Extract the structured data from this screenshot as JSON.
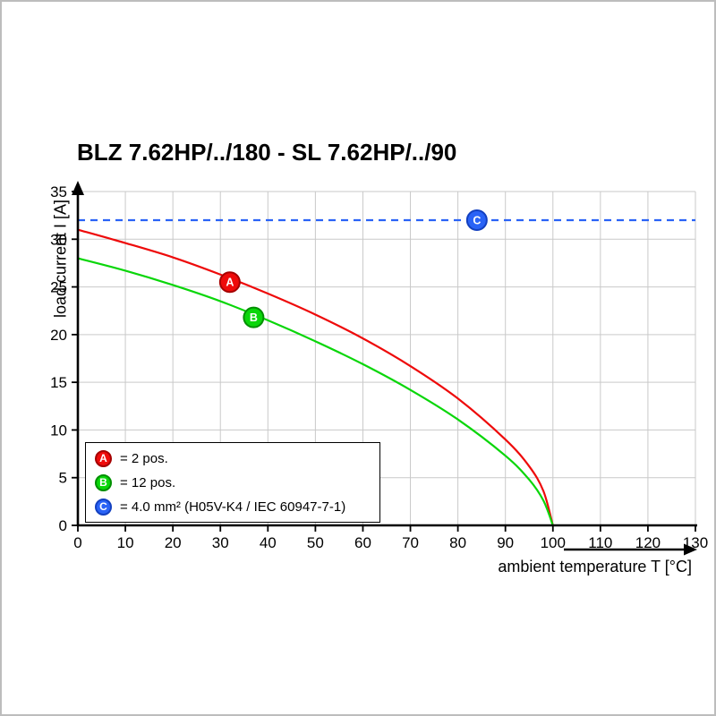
{
  "title": "BLZ 7.62HP/../180 - SL 7.62HP/../90",
  "chart_data": {
    "type": "line",
    "title": "BLZ 7.62HP/../180 - SL 7.62HP/../90",
    "xlabel": "ambient temperature T [°C]",
    "ylabel": "load current I [A]",
    "xlim": [
      0,
      130
    ],
    "ylim": [
      0,
      35
    ],
    "x_ticks": [
      0,
      10,
      20,
      30,
      40,
      50,
      60,
      70,
      80,
      90,
      100,
      110,
      120,
      130
    ],
    "y_ticks": [
      0,
      5,
      10,
      15,
      20,
      25,
      30,
      35
    ],
    "grid": true,
    "legend_position": "lower-left",
    "series": [
      {
        "id": "A",
        "label": "= 2 pos.",
        "color": "#ee0a0a",
        "ring": "#a50000",
        "dashed": false,
        "marker_at": {
          "x": 32,
          "y": 25.5
        },
        "points": [
          [
            0,
            31
          ],
          [
            10,
            29.6
          ],
          [
            20,
            28.1
          ],
          [
            30,
            26.3
          ],
          [
            40,
            24.3
          ],
          [
            50,
            22.1
          ],
          [
            60,
            19.6
          ],
          [
            70,
            16.7
          ],
          [
            80,
            13.3
          ],
          [
            90,
            9.0
          ],
          [
            95,
            6.2
          ],
          [
            98,
            3.6
          ],
          [
            100,
            0
          ]
        ]
      },
      {
        "id": "B",
        "label": "= 12 pos.",
        "color": "#0ad60a",
        "ring": "#008f00",
        "dashed": false,
        "marker_at": {
          "x": 37,
          "y": 21.8
        },
        "points": [
          [
            0,
            28
          ],
          [
            10,
            26.7
          ],
          [
            20,
            25.2
          ],
          [
            30,
            23.5
          ],
          [
            40,
            21.5
          ],
          [
            50,
            19.3
          ],
          [
            60,
            16.9
          ],
          [
            70,
            14.2
          ],
          [
            80,
            11.1
          ],
          [
            90,
            7.3
          ],
          [
            95,
            4.8
          ],
          [
            98,
            2.6
          ],
          [
            100,
            0
          ]
        ]
      },
      {
        "id": "C",
        "label": "= 4.0 mm² (H05V-K4 / IEC 60947-7-1)",
        "color": "#2a63f6",
        "ring": "#1340c0",
        "dashed": true,
        "marker_at": {
          "x": 84,
          "y": 32
        },
        "points": [
          [
            0,
            32
          ],
          [
            130,
            32
          ]
        ]
      }
    ]
  }
}
